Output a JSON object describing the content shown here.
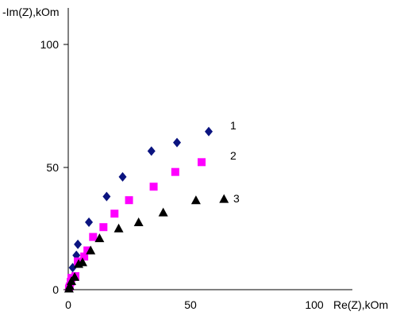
{
  "chart_data": {
    "type": "scatter",
    "title": "",
    "xlabel": "Re(Z),kOm",
    "ylabel": "-Im(Z),kOm",
    "xlim": [
      0,
      100
    ],
    "ylim": [
      0,
      100
    ],
    "x_ticks": [
      "0",
      "50",
      "100"
    ],
    "y_ticks": [
      "0",
      "50",
      "100"
    ],
    "grid": false,
    "legend": "none",
    "series": [
      {
        "name": "1",
        "marker": "diamond",
        "color": "#0B1480",
        "points": [
          [
            0.3,
            0.8
          ],
          [
            0.6,
            2.2
          ],
          [
            1.3,
            4.2
          ],
          [
            1.8,
            9
          ],
          [
            3.3,
            14
          ],
          [
            3.9,
            18.5
          ],
          [
            8.4,
            27.5
          ],
          [
            15.6,
            38
          ],
          [
            22.1,
            46
          ],
          [
            33.8,
            56.5
          ],
          [
            44.2,
            60
          ],
          [
            57.1,
            64.5
          ]
        ]
      },
      {
        "name": "2",
        "marker": "square",
        "color": "#FF00FF",
        "points": [
          [
            0.3,
            0.5
          ],
          [
            0.6,
            1.3
          ],
          [
            1,
            3.2
          ],
          [
            1.3,
            4.8
          ],
          [
            2.9,
            5.5
          ],
          [
            3.9,
            11.5
          ],
          [
            6.5,
            13.5
          ],
          [
            7.8,
            16
          ],
          [
            10.1,
            21.5
          ],
          [
            14.3,
            25.5
          ],
          [
            18.8,
            31
          ],
          [
            24.7,
            36.5
          ],
          [
            34.7,
            42
          ],
          [
            43.5,
            48
          ],
          [
            54.2,
            52
          ]
        ]
      },
      {
        "name": "3",
        "marker": "triangle",
        "color": "#000000",
        "points": [
          [
            0.3,
            0.5
          ],
          [
            0.6,
            1.5
          ],
          [
            1.3,
            3.5
          ],
          [
            2.6,
            5.2
          ],
          [
            4.2,
            10.5
          ],
          [
            5.8,
            11.2
          ],
          [
            9.1,
            16
          ],
          [
            12.7,
            21
          ],
          [
            20.5,
            25
          ],
          [
            28.6,
            27.5
          ],
          [
            38.6,
            31.5
          ],
          [
            51.9,
            36.5
          ],
          [
            63.3,
            37
          ]
        ]
      }
    ],
    "annotations": [
      {
        "text": "1",
        "series": "1"
      },
      {
        "text": "2",
        "series": "2"
      },
      {
        "text": "3",
        "series": "3"
      }
    ]
  }
}
